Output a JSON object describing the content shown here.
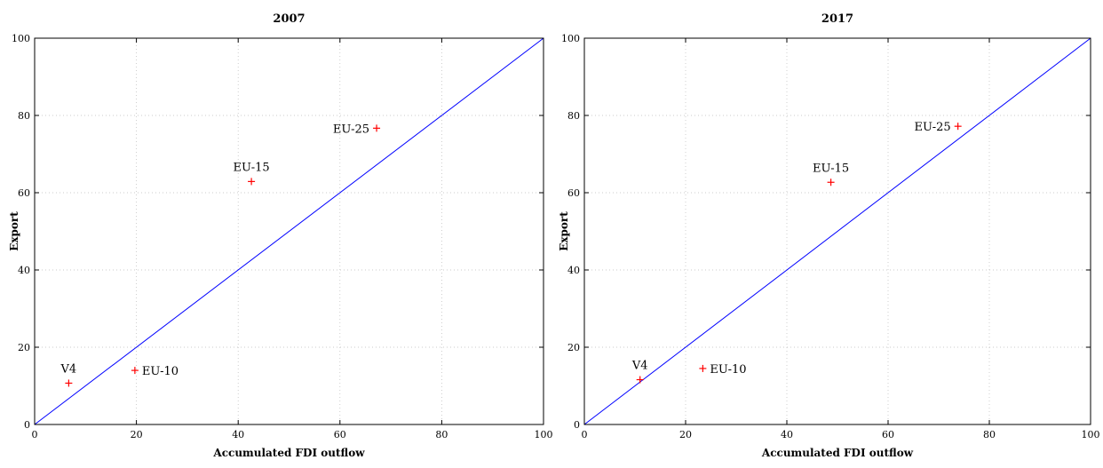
{
  "chart_data": [
    {
      "type": "scatter",
      "title": "2007",
      "xlabel": "Accumulated FDI outflow",
      "ylabel": "Export",
      "xlim": [
        0,
        100
      ],
      "ylim": [
        0,
        100
      ],
      "xticks": [
        0,
        20,
        40,
        60,
        80,
        100
      ],
      "yticks": [
        0,
        20,
        40,
        60,
        80,
        100
      ],
      "grid": true,
      "reference_line": {
        "from": [
          0,
          0
        ],
        "to": [
          100,
          100
        ],
        "color": "#0000ff"
      },
      "marker_color": "#ff0000",
      "points": [
        {
          "label": "V4",
          "x": 6.7,
          "y": 10.7,
          "label_side": "above"
        },
        {
          "label": "EU-10",
          "x": 19.7,
          "y": 14.0,
          "label_side": "right"
        },
        {
          "label": "EU-15",
          "x": 42.6,
          "y": 62.9,
          "label_side": "above"
        },
        {
          "label": "EU-25",
          "x": 67.2,
          "y": 76.7,
          "label_side": "left"
        }
      ]
    },
    {
      "type": "scatter",
      "title": "2017",
      "xlabel": "Accumulated FDI outflow",
      "ylabel": "Export",
      "xlim": [
        0,
        100
      ],
      "ylim": [
        0,
        100
      ],
      "xticks": [
        0,
        20,
        40,
        60,
        80,
        100
      ],
      "yticks": [
        0,
        20,
        40,
        60,
        80,
        100
      ],
      "grid": true,
      "reference_line": {
        "from": [
          0,
          0
        ],
        "to": [
          100,
          100
        ],
        "color": "#0000ff"
      },
      "marker_color": "#ff0000",
      "points": [
        {
          "label": "V4",
          "x": 11.0,
          "y": 11.6,
          "label_side": "above"
        },
        {
          "label": "EU-10",
          "x": 23.4,
          "y": 14.5,
          "label_side": "right"
        },
        {
          "label": "EU-15",
          "x": 48.7,
          "y": 62.7,
          "label_side": "above"
        },
        {
          "label": "EU-25",
          "x": 73.8,
          "y": 77.2,
          "label_side": "left"
        }
      ]
    }
  ]
}
